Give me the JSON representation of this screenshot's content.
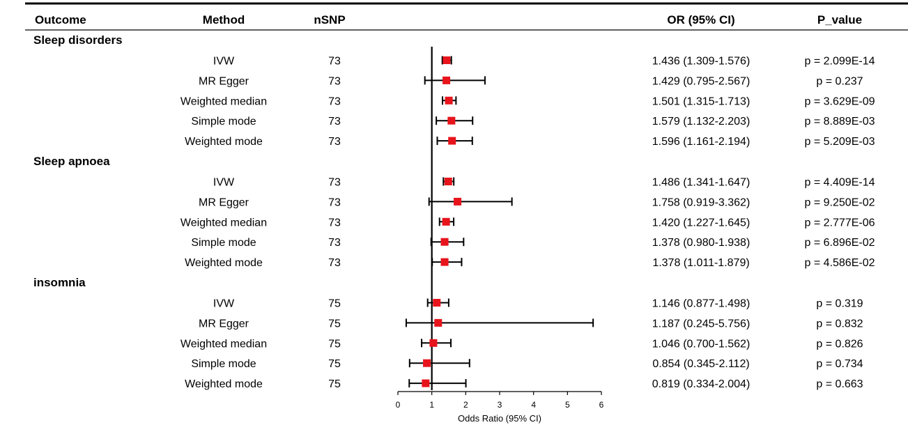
{
  "headers": {
    "outcome": "Outcome",
    "method": "Method",
    "nsnp": "nSNP",
    "or": "OR (95% CI)",
    "p": "P_value"
  },
  "groups": [
    {
      "name": "Sleep disorders",
      "rows": [
        {
          "method": "IVW",
          "nsnp": "73",
          "or_text": "1.436 (1.309-1.576)",
          "p": "p = 2.099E-14"
        },
        {
          "method": "MR Egger",
          "nsnp": "73",
          "or_text": "1.429 (0.795-2.567)",
          "p": "p = 0.237"
        },
        {
          "method": "Weighted median",
          "nsnp": "73",
          "or_text": "1.501 (1.315-1.713)",
          "p": "p = 3.629E-09"
        },
        {
          "method": "Simple mode",
          "nsnp": "73",
          "or_text": "1.579 (1.132-2.203)",
          "p": "p = 8.889E-03"
        },
        {
          "method": "Weighted mode",
          "nsnp": "73",
          "or_text": "1.596 (1.161-2.194)",
          "p": "p = 5.209E-03"
        }
      ]
    },
    {
      "name": "Sleep apnoea",
      "rows": [
        {
          "method": "IVW",
          "nsnp": "73",
          "or_text": "1.486 (1.341-1.647)",
          "p": "p = 4.409E-14"
        },
        {
          "method": "MR Egger",
          "nsnp": "73",
          "or_text": "1.758 (0.919-3.362)",
          "p": "p = 9.250E-02"
        },
        {
          "method": "Weighted median",
          "nsnp": "73",
          "or_text": "1.420 (1.227-1.645)",
          "p": "p = 2.777E-06"
        },
        {
          "method": "Simple mode",
          "nsnp": "73",
          "or_text": "1.378 (0.980-1.938)",
          "p": "p = 6.896E-02"
        },
        {
          "method": "Weighted mode",
          "nsnp": "73",
          "or_text": "1.378 (1.011-1.879)",
          "p": "p = 4.586E-02"
        }
      ]
    },
    {
      "name": "insomnia",
      "rows": [
        {
          "method": "IVW",
          "nsnp": "75",
          "or_text": "1.146 (0.877-1.498)",
          "p": "p = 0.319"
        },
        {
          "method": "MR Egger",
          "nsnp": "75",
          "or_text": "1.187 (0.245-5.756)",
          "p": "p = 0.832"
        },
        {
          "method": "Weighted median",
          "nsnp": "75",
          "or_text": "1.046 (0.700-1.562)",
          "p": "p = 0.826"
        },
        {
          "method": "Simple mode",
          "nsnp": "75",
          "or_text": "0.854 (0.345-2.112)",
          "p": "p = 0.734"
        },
        {
          "method": "Weighted mode",
          "nsnp": "75",
          "or_text": "0.819 (0.334-2.004)",
          "p": "p = 0.663"
        }
      ]
    }
  ],
  "chart_data": {
    "type": "forest",
    "xlabel": "Odds Ratio (95% CI)",
    "xlim": [
      0,
      6
    ],
    "xticks": [
      0,
      1,
      2,
      3,
      4,
      5,
      6
    ],
    "reference_line": 1,
    "marker_color": "#e8141c",
    "line_color": "#000000",
    "points": [
      {
        "group": "Sleep disorders",
        "method": "IVW",
        "or": 1.436,
        "lower": 1.309,
        "upper": 1.576
      },
      {
        "group": "Sleep disorders",
        "method": "MR Egger",
        "or": 1.429,
        "lower": 0.795,
        "upper": 2.567
      },
      {
        "group": "Sleep disorders",
        "method": "Weighted median",
        "or": 1.501,
        "lower": 1.315,
        "upper": 1.713
      },
      {
        "group": "Sleep disorders",
        "method": "Simple mode",
        "or": 1.579,
        "lower": 1.132,
        "upper": 2.203
      },
      {
        "group": "Sleep disorders",
        "method": "Weighted mode",
        "or": 1.596,
        "lower": 1.161,
        "upper": 2.194
      },
      {
        "group": "Sleep apnoea",
        "method": "IVW",
        "or": 1.486,
        "lower": 1.341,
        "upper": 1.647
      },
      {
        "group": "Sleep apnoea",
        "method": "MR Egger",
        "or": 1.758,
        "lower": 0.919,
        "upper": 3.362
      },
      {
        "group": "Sleep apnoea",
        "method": "Weighted median",
        "or": 1.42,
        "lower": 1.227,
        "upper": 1.645
      },
      {
        "group": "Sleep apnoea",
        "method": "Simple mode",
        "or": 1.378,
        "lower": 0.98,
        "upper": 1.938
      },
      {
        "group": "Sleep apnoea",
        "method": "Weighted mode",
        "or": 1.378,
        "lower": 1.011,
        "upper": 1.879
      },
      {
        "group": "insomnia",
        "method": "IVW",
        "or": 1.146,
        "lower": 0.877,
        "upper": 1.498
      },
      {
        "group": "insomnia",
        "method": "MR Egger",
        "or": 1.187,
        "lower": 0.245,
        "upper": 5.756
      },
      {
        "group": "insomnia",
        "method": "Weighted median",
        "or": 1.046,
        "lower": 0.7,
        "upper": 1.562
      },
      {
        "group": "insomnia",
        "method": "Simple mode",
        "or": 0.854,
        "lower": 0.345,
        "upper": 2.112
      },
      {
        "group": "insomnia",
        "method": "Weighted mode",
        "or": 0.819,
        "lower": 0.334,
        "upper": 2.004
      }
    ]
  }
}
